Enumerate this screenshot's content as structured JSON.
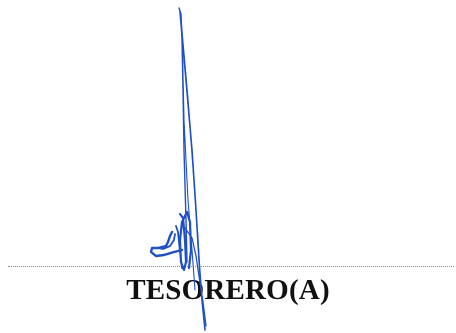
{
  "signature": {
    "role_label": "TESORERO(A)",
    "ink_color": "#2050c8"
  }
}
